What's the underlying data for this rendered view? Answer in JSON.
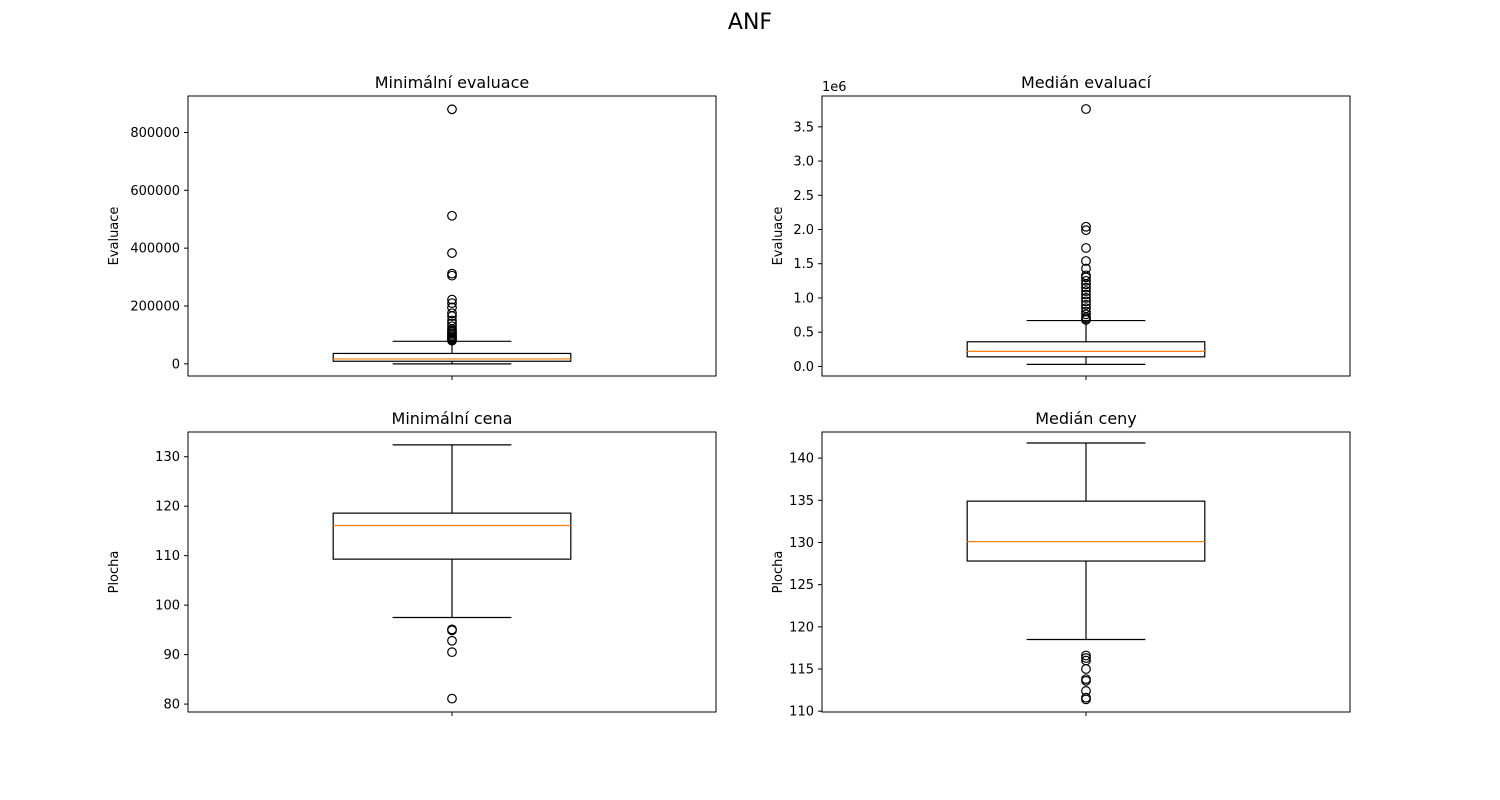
{
  "figure": {
    "suptitle": "ANF"
  },
  "style": {
    "box_color": "#000000",
    "median_color": "#ff7f0e",
    "background": "#ffffff"
  },
  "chart_data": [
    {
      "type": "boxplot",
      "title": "Minimální evaluace",
      "ylabel": "Evaluace",
      "xlabel": "",
      "ylim": [
        -42000,
        926000
      ],
      "yticks": [
        0,
        200000,
        400000,
        600000,
        800000
      ],
      "ytick_labels": [
        "0",
        "200000",
        "400000",
        "600000",
        "800000"
      ],
      "offset_label": "",
      "box": {
        "whisker_low": 0,
        "q1": 9000,
        "median": 17000,
        "q3": 36000,
        "whisker_high": 78000
      },
      "outliers": [
        80000,
        83000,
        86000,
        90000,
        95000,
        100000,
        105000,
        110000,
        115000,
        120000,
        130000,
        140000,
        150000,
        165000,
        175000,
        195000,
        210000,
        222000,
        305000,
        312000,
        383000,
        512000,
        880000
      ]
    },
    {
      "type": "boxplot",
      "title": "Medián evaluací",
      "ylabel": "Evaluace",
      "xlabel": "",
      "ylim": [
        -140000,
        3950000
      ],
      "yticks": [
        0,
        500000,
        1000000,
        1500000,
        2000000,
        2500000,
        3000000,
        3500000
      ],
      "ytick_labels": [
        "0.0",
        "0.5",
        "1.0",
        "1.5",
        "2.0",
        "2.5",
        "3.0",
        "3.5"
      ],
      "offset_label": "1e6",
      "box": {
        "whisker_low": 30000,
        "q1": 140000,
        "median": 220000,
        "q3": 360000,
        "whisker_high": 670000
      },
      "outliers": [
        680000,
        700000,
        720000,
        760000,
        800000,
        850000,
        900000,
        950000,
        1000000,
        1050000,
        1100000,
        1150000,
        1200000,
        1250000,
        1300000,
        1330000,
        1430000,
        1540000,
        1730000,
        1990000,
        2040000,
        3760000
      ]
    },
    {
      "type": "boxplot",
      "title": "Minimální cena",
      "ylabel": "Plocha",
      "xlabel": "",
      "ylim": [
        78.4,
        135.0
      ],
      "yticks": [
        80,
        90,
        100,
        110,
        120,
        130
      ],
      "ytick_labels": [
        "80",
        "90",
        "100",
        "110",
        "120",
        "130"
      ],
      "offset_label": "",
      "box": {
        "whisker_low": 97.5,
        "q1": 109.3,
        "median": 116.1,
        "q3": 118.6,
        "whisker_high": 132.4
      },
      "outliers": [
        95.1,
        94.9,
        92.8,
        90.5,
        81.1
      ]
    },
    {
      "type": "boxplot",
      "title": "Medián ceny",
      "ylabel": "Plocha",
      "xlabel": "",
      "ylim": [
        109.9,
        143.1
      ],
      "yticks": [
        110,
        115,
        120,
        125,
        130,
        135,
        140
      ],
      "ytick_labels": [
        "110",
        "115",
        "120",
        "125",
        "130",
        "135",
        "140"
      ],
      "offset_label": "",
      "box": {
        "whisker_low": 118.5,
        "q1": 127.8,
        "median": 130.1,
        "q3": 134.9,
        "whisker_high": 141.8
      },
      "outliers": [
        116.6,
        116.3,
        116.0,
        115.0,
        113.8,
        113.6,
        112.4,
        111.6,
        111.4
      ]
    }
  ]
}
